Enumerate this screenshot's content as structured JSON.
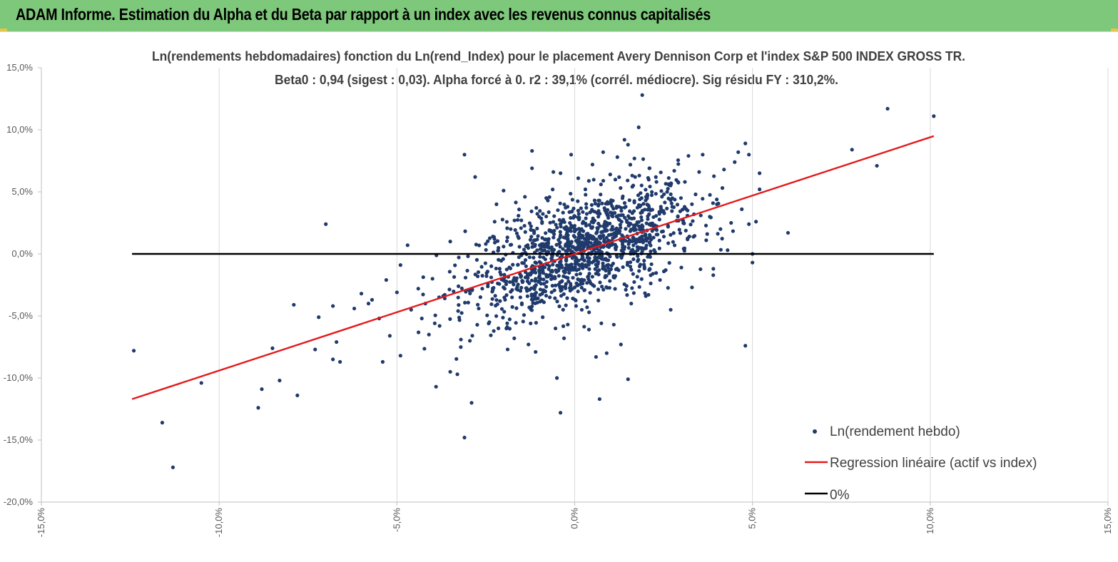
{
  "header": {
    "title": "ADAM Informe. Estimation du Alpha et du Beta par rapport à un index avec les revenus connus capitalisés"
  },
  "colors": {
    "header_bg": "#7dc87a",
    "points": "#1f3a6b",
    "regression": "#e31a1c",
    "zero_line": "#000000",
    "grid": "#d9d9d9"
  },
  "chart_data": {
    "type": "scatter",
    "title_line1": "Ln(rendements hebdomadaires) fonction du Ln(rend_Index) pour le placement Avery Dennison Corp et l'index S&P 500 INDEX GROSS TR.",
    "title_line2": "Beta0 : 0,94 (sigest : 0,03). Alpha forcé à 0. r2 : 39,1% (corrél. médiocre). Sig résidu FY : 310,2%.",
    "xlim": [
      -0.15,
      0.15
    ],
    "ylim": [
      -0.2,
      0.15
    ],
    "x_ticks": [
      -0.15,
      -0.1,
      -0.05,
      0,
      0.05,
      0.1,
      0.15
    ],
    "x_tick_labels": [
      "-15,0%",
      "-10,0%",
      "-5,0%",
      "0,0%",
      "5,0%",
      "10,0%",
      "15,0%"
    ],
    "y_ticks": [
      0.15,
      0.1,
      0.05,
      0,
      -0.05,
      -0.1,
      -0.15,
      -0.2
    ],
    "y_tick_labels": [
      "15,0%",
      "10,0%",
      "5,0%",
      "0,0%",
      "-5,0%",
      "-10,0%",
      "-15,0%",
      "-20,0%"
    ],
    "grid": "vertical",
    "legend_position": "bottom-right",
    "beta": 0.94,
    "regression_x_range": [
      -0.1245,
      0.101
    ],
    "zero_line_x_range": [
      -0.1245,
      0.101
    ],
    "series": [
      {
        "name": "Ln(rendement hebdo)",
        "type": "scatter",
        "points": [
          [
            -0.124,
            -0.078
          ],
          [
            -0.116,
            -0.136
          ],
          [
            -0.113,
            -0.172
          ],
          [
            -0.105,
            -0.104
          ],
          [
            -0.089,
            -0.124
          ],
          [
            -0.088,
            -0.109
          ],
          [
            -0.085,
            -0.076
          ],
          [
            -0.083,
            -0.102
          ],
          [
            -0.078,
            -0.114
          ],
          [
            -0.079,
            -0.041
          ],
          [
            -0.073,
            -0.077
          ],
          [
            -0.072,
            -0.051
          ],
          [
            -0.07,
            0.024
          ],
          [
            -0.068,
            -0.042
          ],
          [
            -0.068,
            -0.085
          ],
          [
            -0.067,
            -0.071
          ],
          [
            -0.066,
            -0.087
          ],
          [
            -0.062,
            -0.044
          ],
          [
            -0.06,
            -0.032
          ],
          [
            -0.058,
            -0.04
          ],
          [
            -0.057,
            -0.037
          ],
          [
            -0.055,
            -0.052
          ],
          [
            -0.054,
            -0.087
          ],
          [
            -0.053,
            -0.021
          ],
          [
            -0.052,
            -0.066
          ],
          [
            -0.05,
            -0.031
          ],
          [
            -0.049,
            -0.009
          ],
          [
            -0.049,
            -0.082
          ],
          [
            -0.047,
            0.007
          ],
          [
            -0.046,
            -0.045
          ],
          [
            -0.044,
            -0.028
          ],
          [
            -0.043,
            -0.052
          ],
          [
            -0.042,
            -0.04
          ],
          [
            -0.041,
            -0.065
          ],
          [
            -0.04,
            -0.02
          ],
          [
            -0.039,
            -0.107
          ],
          [
            -0.038,
            -0.058
          ],
          [
            -0.037,
            -0.034
          ],
          [
            -0.035,
            0.01
          ],
          [
            -0.035,
            -0.095
          ],
          [
            -0.033,
            -0.097
          ],
          [
            -0.032,
            -0.069
          ],
          [
            -0.031,
            -0.148
          ],
          [
            -0.031,
            0.08
          ],
          [
            -0.029,
            -0.12
          ],
          [
            -0.028,
            0.062
          ],
          [
            -0.027,
            -0.044
          ],
          [
            -0.026,
            -0.028
          ],
          [
            -0.025,
            0.008
          ],
          [
            -0.024,
            -0.055
          ],
          [
            -0.023,
            0.014
          ],
          [
            -0.022,
            0.04
          ],
          [
            -0.021,
            -0.038
          ],
          [
            -0.02,
            0.051
          ],
          [
            -0.019,
            -0.059
          ],
          [
            -0.018,
            0.02
          ],
          [
            -0.017,
            -0.068
          ],
          [
            -0.016,
            -0.029
          ],
          [
            -0.015,
            0.027
          ],
          [
            -0.014,
            0.046
          ],
          [
            -0.013,
            -0.073
          ],
          [
            -0.012,
            0.083
          ],
          [
            -0.012,
            0.069
          ],
          [
            -0.011,
            -0.079
          ],
          [
            -0.01,
            0.03
          ],
          [
            -0.009,
            -0.051
          ],
          [
            -0.008,
            0.045
          ],
          [
            -0.007,
            -0.035
          ],
          [
            -0.006,
            0.066
          ],
          [
            -0.005,
            -0.1
          ],
          [
            -0.004,
            -0.128
          ],
          [
            -0.004,
            0.015
          ],
          [
            -0.003,
            -0.068
          ],
          [
            -0.002,
            0.038
          ],
          [
            -0.001,
            0.08
          ],
          [
            0.0,
            -0.027
          ],
          [
            0.001,
            0.061
          ],
          [
            0.002,
            -0.045
          ],
          [
            0.003,
            0.052
          ],
          [
            0.004,
            -0.061
          ],
          [
            0.005,
            0.072
          ],
          [
            0.006,
            -0.083
          ],
          [
            0.007,
            -0.117
          ],
          [
            0.008,
            0.082
          ],
          [
            0.009,
            -0.08
          ],
          [
            0.01,
            0.064
          ],
          [
            0.011,
            -0.057
          ],
          [
            0.012,
            0.078
          ],
          [
            0.013,
            -0.073
          ],
          [
            0.014,
            0.092
          ],
          [
            0.015,
            0.088
          ],
          [
            0.015,
            -0.101
          ],
          [
            0.017,
            0.062
          ],
          [
            0.018,
            0.102
          ],
          [
            0.019,
            0.128
          ],
          [
            0.02,
            -0.034
          ],
          [
            0.021,
            0.069
          ],
          [
            0.022,
            -0.016
          ],
          [
            0.023,
            0.058
          ],
          [
            0.024,
            -0.021
          ],
          [
            0.026,
            0.05
          ],
          [
            0.027,
            -0.045
          ],
          [
            0.028,
            0.067
          ],
          [
            0.029,
            0.03
          ],
          [
            0.03,
            -0.011
          ],
          [
            0.031,
            0.058
          ],
          [
            0.032,
            0.079
          ],
          [
            0.033,
            -0.027
          ],
          [
            0.034,
            0.048
          ],
          [
            0.035,
            0.066
          ],
          [
            0.036,
            0.08
          ],
          [
            0.037,
            0.011
          ],
          [
            0.038,
            0.03
          ],
          [
            0.039,
            -0.012
          ],
          [
            0.04,
            0.04
          ],
          [
            0.041,
            0.02
          ],
          [
            0.042,
            0.068
          ],
          [
            0.043,
            0.003
          ],
          [
            0.044,
            0.025
          ],
          [
            0.045,
            0.074
          ],
          [
            0.046,
            0.082
          ],
          [
            0.047,
            0.036
          ],
          [
            0.048,
            -0.074
          ],
          [
            0.048,
            0.089
          ],
          [
            0.049,
            0.024
          ],
          [
            0.049,
            0.08
          ],
          [
            0.05,
            0.0
          ],
          [
            0.05,
            -0.007
          ],
          [
            0.051,
            0.026
          ],
          [
            0.052,
            0.052
          ],
          [
            0.052,
            0.065
          ],
          [
            0.06,
            0.017
          ],
          [
            0.078,
            0.084
          ],
          [
            0.085,
            0.071
          ],
          [
            0.088,
            0.117
          ],
          [
            0.101,
            0.111
          ]
        ]
      },
      {
        "name": "Regression linéaire (actif vs index)",
        "type": "line"
      },
      {
        "name": "0%",
        "type": "line"
      }
    ]
  }
}
